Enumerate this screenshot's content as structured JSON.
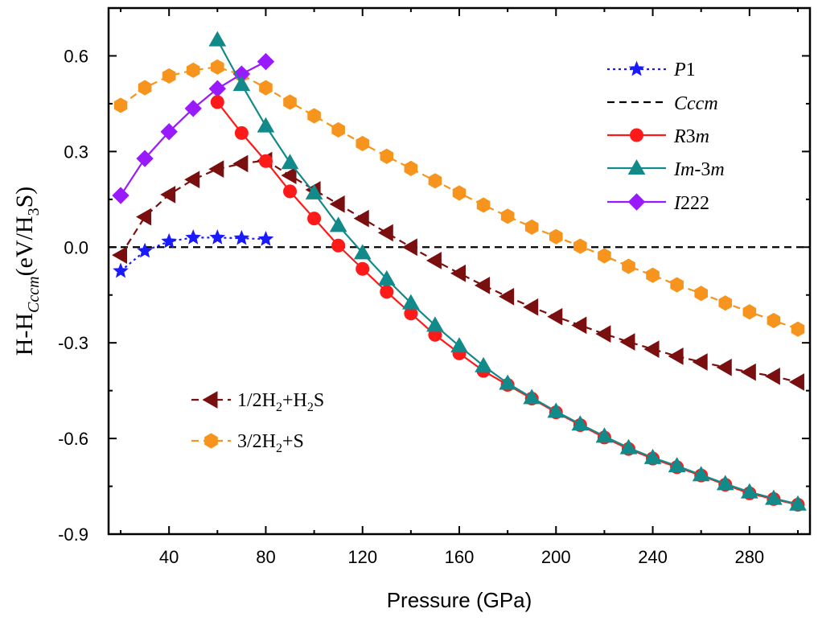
{
  "chart_data": {
    "type": "line",
    "xlabel": "Pressure (GPa)",
    "ylabel": {
      "base": "H-H",
      "sub": "Cccm",
      "unit_open": "(eV/H",
      "unit_sub": "3",
      "unit_close": "S)"
    },
    "xlim": [
      15,
      305
    ],
    "ylim": [
      -0.9,
      0.75
    ],
    "xticks": [
      40,
      80,
      120,
      160,
      200,
      240,
      280
    ],
    "xtick_labels": [
      "40",
      "80",
      "120",
      "160",
      "200",
      "240",
      "280"
    ],
    "yticks": [
      -0.9,
      -0.6,
      -0.3,
      0.0,
      0.3,
      0.6
    ],
    "ytick_labels": [
      "-0.9",
      "-0.6",
      "-0.3",
      "0.0",
      "0.3",
      "0.6"
    ],
    "grid": false,
    "legends": [
      {
        "placement": "top-right",
        "entries": [
          0,
          1,
          2,
          3,
          4
        ]
      },
      {
        "placement": "bottom-left",
        "entries": [
          5,
          6
        ]
      }
    ],
    "series": [
      {
        "name": "P1",
        "color": "#1a1aff",
        "marker": "star",
        "line": "dotted",
        "x": [
          20,
          30,
          40,
          50,
          60,
          70,
          80
        ],
        "y": [
          -0.075,
          -0.012,
          0.018,
          0.03,
          0.03,
          0.028,
          0.025
        ]
      },
      {
        "name": "Cccm",
        "color": "#000000",
        "marker": "none",
        "line": "dashed",
        "x": [
          15,
          305
        ],
        "y": [
          0.0,
          0.0
        ]
      },
      {
        "name": "R3m",
        "color": "#ff1a1a",
        "marker": "circle",
        "line": "solid",
        "x": [
          60,
          70,
          80,
          90,
          100,
          110,
          120,
          130,
          140,
          150,
          160,
          170,
          180,
          190,
          200,
          210,
          220,
          230,
          240,
          250,
          260,
          270,
          280,
          290,
          300
        ],
        "y": [
          0.455,
          0.358,
          0.27,
          0.175,
          0.09,
          0.005,
          -0.068,
          -0.14,
          -0.208,
          -0.275,
          -0.333,
          -0.388,
          -0.432,
          -0.475,
          -0.518,
          -0.558,
          -0.597,
          -0.633,
          -0.663,
          -0.69,
          -0.716,
          -0.745,
          -0.772,
          -0.79,
          -0.808
        ]
      },
      {
        "name": "Im-3m",
        "color": "#138a8a",
        "marker": "triangle",
        "line": "solid",
        "x": [
          60,
          70,
          80,
          90,
          100,
          110,
          120,
          130,
          140,
          150,
          160,
          170,
          180,
          190,
          200,
          210,
          220,
          230,
          240,
          250,
          260,
          270,
          280,
          290,
          300
        ],
        "y": [
          0.65,
          0.51,
          0.38,
          0.265,
          0.17,
          0.068,
          -0.018,
          -0.1,
          -0.175,
          -0.245,
          -0.31,
          -0.372,
          -0.427,
          -0.472,
          -0.515,
          -0.555,
          -0.593,
          -0.629,
          -0.66,
          -0.686,
          -0.714,
          -0.742,
          -0.768,
          -0.788,
          -0.806
        ]
      },
      {
        "name": "I222",
        "color": "#9a1aff",
        "marker": "diamond",
        "line": "solid",
        "x": [
          20,
          30,
          40,
          50,
          60,
          70,
          80
        ],
        "y": [
          0.162,
          0.278,
          0.362,
          0.435,
          0.497,
          0.543,
          0.582
        ]
      },
      {
        "name": "1/2H2+H2S",
        "color": "#7a0f0f",
        "marker": "triangle-left",
        "line": "dashed",
        "x": [
          20,
          30,
          40,
          50,
          60,
          70,
          80,
          90,
          100,
          110,
          120,
          130,
          140,
          150,
          160,
          170,
          180,
          190,
          200,
          210,
          220,
          230,
          240,
          250,
          260,
          270,
          280,
          290,
          300
        ],
        "y": [
          -0.025,
          0.095,
          0.165,
          0.212,
          0.245,
          0.262,
          0.272,
          0.225,
          0.18,
          0.135,
          0.09,
          0.045,
          0.0,
          -0.042,
          -0.082,
          -0.12,
          -0.155,
          -0.188,
          -0.218,
          -0.245,
          -0.272,
          -0.297,
          -0.32,
          -0.342,
          -0.36,
          -0.377,
          -0.392,
          -0.405,
          -0.423
        ]
      },
      {
        "name": "3/2H2+S",
        "color": "#f7941d",
        "marker": "hexagon",
        "line": "dashed",
        "x": [
          20,
          30,
          40,
          50,
          60,
          70,
          80,
          90,
          100,
          110,
          120,
          130,
          140,
          150,
          160,
          170,
          180,
          190,
          200,
          210,
          220,
          230,
          240,
          250,
          260,
          270,
          280,
          290,
          300
        ],
        "y": [
          0.445,
          0.5,
          0.537,
          0.555,
          0.565,
          0.54,
          0.5,
          0.455,
          0.412,
          0.368,
          0.325,
          0.285,
          0.247,
          0.208,
          0.17,
          0.132,
          0.097,
          0.063,
          0.033,
          0.003,
          -0.027,
          -0.06,
          -0.088,
          -0.118,
          -0.145,
          -0.175,
          -0.203,
          -0.23,
          -0.257
        ]
      }
    ]
  },
  "legend_labels": {
    "p1": {
      "main": "P",
      "rest": "1"
    },
    "cccm": {
      "main": "Cccm"
    },
    "r3m": {
      "main": "R",
      "rest": "3",
      "it2": "m"
    },
    "im3m": {
      "main": "Im",
      "rest": "-3",
      "it2": "m"
    },
    "i222": {
      "main": "I",
      "rest": "222"
    },
    "h2h2s": {
      "a": "1/2H",
      "sub1": "2",
      "b": "+H",
      "sub2": "2",
      "c": "S"
    },
    "h2s": {
      "a": "3/2H",
      "sub1": "2",
      "b": "+S"
    }
  }
}
